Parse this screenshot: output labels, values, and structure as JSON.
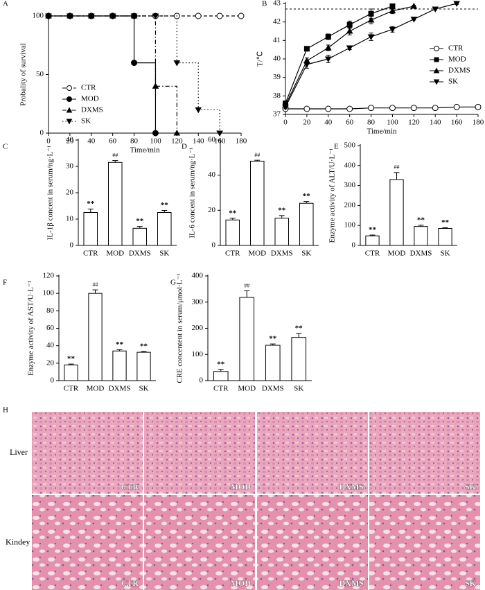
{
  "chart_data": [
    {
      "type": "line",
      "panel_label": "A",
      "step": true,
      "ylabel": "Probality of survival",
      "xlabel": "Time/min",
      "x": [
        0,
        20,
        40,
        60,
        80,
        100,
        120,
        140,
        160,
        180
      ],
      "xlim": [
        0,
        180
      ],
      "xticks": [
        0,
        20,
        40,
        60,
        80,
        100,
        120,
        140,
        160,
        180
      ],
      "ylim": [
        0,
        100
      ],
      "yticks": [
        0,
        50,
        100
      ],
      "legend": "lower left",
      "series": [
        {
          "name": "CTR",
          "color": "#000000",
          "dash": "dashed",
          "marker": "open-circle",
          "values": [
            100,
            100,
            100,
            100,
            100,
            100,
            100,
            100,
            100,
            100
          ]
        },
        {
          "name": "MOD",
          "color": "#000000",
          "dash": "solid",
          "marker": "filled-circle",
          "values": [
            100,
            100,
            100,
            100,
            60,
            0,
            null,
            null,
            null,
            null
          ]
        },
        {
          "name": "DXMS",
          "color": "#000000",
          "dash": "dashdot",
          "marker": "triangle-up",
          "values": [
            100,
            100,
            100,
            100,
            100,
            40,
            0,
            null,
            null,
            null
          ]
        },
        {
          "name": "SK",
          "color": "#000000",
          "dash": "dotted",
          "marker": "triangle-down",
          "values": [
            100,
            100,
            100,
            100,
            100,
            100,
            60,
            20,
            0,
            null
          ]
        }
      ]
    },
    {
      "type": "line",
      "panel_label": "B",
      "ylabel": "T/℃",
      "xlabel": "Time/min",
      "x": [
        0,
        20,
        40,
        60,
        80,
        100,
        120,
        140,
        160,
        180
      ],
      "xlim": [
        0,
        180
      ],
      "xticks": [
        0,
        20,
        40,
        60,
        80,
        100,
        120,
        140,
        160,
        180
      ],
      "ylim": [
        37,
        43
      ],
      "yticks": [
        37,
        38,
        39,
        40,
        41,
        42,
        43
      ],
      "legend": "center right",
      "reference_line": 42.7,
      "series": [
        {
          "name": "CTR",
          "color": "#000000",
          "dash": "solid",
          "marker": "open-circle",
          "values": [
            37.3,
            37.3,
            37.3,
            37.3,
            37.35,
            37.35,
            37.35,
            37.35,
            37.4,
            37.4
          ],
          "errors": [
            0.05,
            0.05,
            0.05,
            0.05,
            0.05,
            0.05,
            0.05,
            0.05,
            0.05,
            0.05
          ]
        },
        {
          "name": "MOD",
          "color": "#000000",
          "dash": "solid",
          "marker": "filled-square",
          "values": [
            37.6,
            40.55,
            41.2,
            41.85,
            42.45,
            42.85,
            null,
            null,
            null,
            null
          ],
          "errors": [
            0.1,
            0.1,
            0.15,
            0.2,
            0.25,
            0.1,
            null,
            null,
            null,
            null
          ]
        },
        {
          "name": "DXMS",
          "color": "#000000",
          "dash": "solid",
          "marker": "triangle-up",
          "values": [
            37.5,
            39.9,
            40.6,
            41.5,
            42.1,
            42.6,
            42.85,
            null,
            null,
            null
          ],
          "errors": [
            0.1,
            0.15,
            0.15,
            0.2,
            0.2,
            0.15,
            0.05,
            null,
            null,
            null
          ]
        },
        {
          "name": "SK",
          "color": "#000000",
          "dash": "solid",
          "marker": "triangle-down",
          "values": [
            37.4,
            39.7,
            40.0,
            40.6,
            41.2,
            41.6,
            42.15,
            42.7,
            43.0,
            null
          ],
          "errors": [
            0.1,
            0.2,
            0.2,
            0.1,
            0.2,
            0.15,
            0.05,
            0.05,
            0.05,
            null
          ]
        }
      ]
    },
    {
      "type": "bar",
      "panel_label": "C",
      "ylabel": "IL-1β concent in serum/ng·L⁻¹",
      "categories": [
        "CTR",
        "MOD",
        "DXMS",
        "SK"
      ],
      "values": [
        12.5,
        31.5,
        6.5,
        12.5
      ],
      "errors": [
        1.3,
        0.7,
        0.7,
        0.8
      ],
      "annotations": [
        "**",
        "##",
        "**",
        "**"
      ],
      "color": "#ffffff",
      "ylim": [
        0,
        40
      ],
      "yticks": [
        0,
        10,
        20,
        30,
        40
      ]
    },
    {
      "type": "bar",
      "panel_label": "D",
      "ylabel": "IL-6 concent in serum/ng·L⁻¹",
      "categories": [
        "CTR",
        "MOD",
        "DXMS",
        "SK"
      ],
      "values": [
        14.5,
        48,
        15.5,
        24
      ],
      "errors": [
        1,
        0.5,
        1.5,
        1
      ],
      "annotations": [
        "**",
        "##",
        "**",
        "**"
      ],
      "color": "#ffffff",
      "ylim": [
        0,
        60
      ],
      "yticks": [
        0,
        20,
        40,
        60
      ]
    },
    {
      "type": "bar",
      "panel_label": "E",
      "ylabel": "Enzyme activity of ALT/U·L⁻¹",
      "categories": [
        "CTR",
        "MOD",
        "DXMS",
        "SK"
      ],
      "values": [
        48,
        330,
        95,
        85
      ],
      "errors": [
        4,
        35,
        6,
        4
      ],
      "annotations": [
        "**",
        "##",
        "**",
        "**"
      ],
      "color": "#ffffff",
      "ylim": [
        0,
        500
      ],
      "yticks": [
        0,
        100,
        200,
        300,
        400,
        500
      ]
    },
    {
      "type": "bar",
      "panel_label": "F",
      "ylabel": "Enzyme activity of AST/U·L⁻¹",
      "categories": [
        "CTR",
        "MOD",
        "DXMS",
        "SK"
      ],
      "values": [
        18,
        100,
        34,
        32.5
      ],
      "errors": [
        1,
        4,
        1.5,
        1
      ],
      "annotations": [
        "**",
        "##",
        "**",
        "**"
      ],
      "color": "#ffffff",
      "ylim": [
        0,
        120
      ],
      "yticks": [
        0,
        20,
        40,
        60,
        80,
        100,
        120
      ]
    },
    {
      "type": "bar",
      "panel_label": "G",
      "ylabel": "CRE concentent in serum/μmol·L⁻¹",
      "categories": [
        "CTR",
        "MOD",
        "DXMS",
        "SK"
      ],
      "values": [
        35,
        318,
        135,
        165
      ],
      "errors": [
        8,
        25,
        5,
        15
      ],
      "annotations": [
        "**",
        "##",
        "**",
        "**"
      ],
      "color": "#ffffff",
      "ylim": [
        0,
        400
      ],
      "yticks": [
        0,
        100,
        200,
        300,
        400
      ]
    }
  ],
  "histology": {
    "panel_label": "H",
    "rows": [
      "Liver",
      "Kindey"
    ],
    "columns": [
      "CTR",
      "MOD",
      "DXMS",
      "SK"
    ]
  }
}
